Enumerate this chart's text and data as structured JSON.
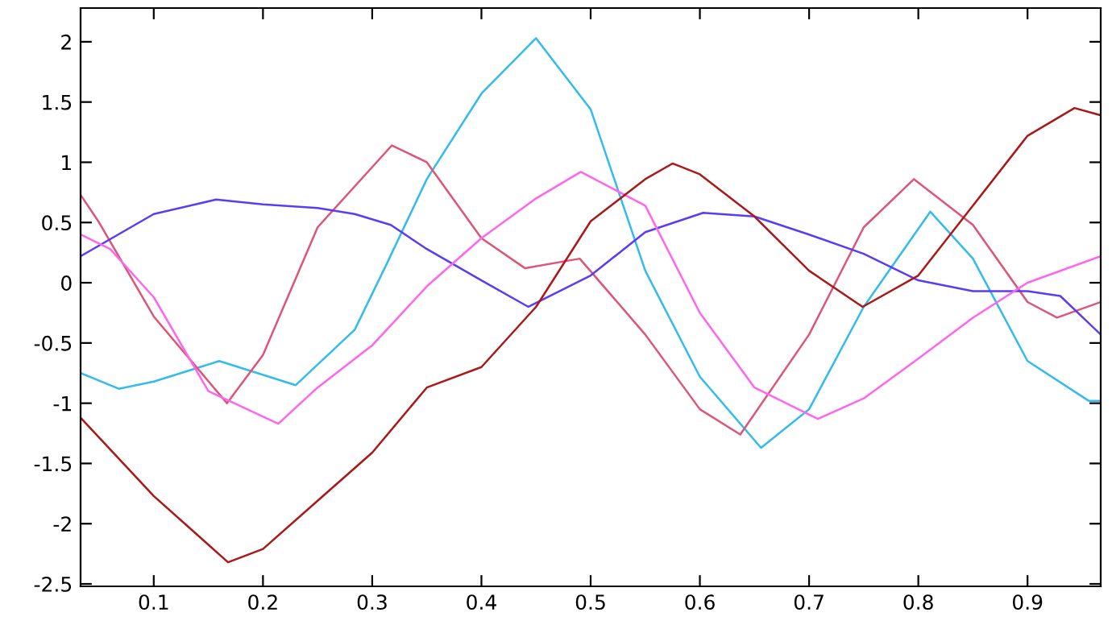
{
  "chart_data": {
    "type": "line",
    "xlim": [
      0.033,
      0.967
    ],
    "ylim": [
      -2.52,
      2.28
    ],
    "xticks": [
      0.1,
      0.2,
      0.3,
      0.4,
      0.5,
      0.6,
      0.7,
      0.8,
      0.9
    ],
    "yticks": [
      -2.5,
      -2,
      -1.5,
      -1,
      -0.5,
      0,
      0.5,
      1,
      1.5,
      2
    ],
    "grid": false,
    "legend": false,
    "marker": "none",
    "line_style": "solid",
    "series": [
      {
        "color": "#33bbee",
        "x": [
          0.033,
          0.068,
          0.1,
          0.16,
          0.23,
          0.284,
          0.314,
          0.35,
          0.4,
          0.45,
          0.5,
          0.55,
          0.6,
          0.656,
          0.7,
          0.75,
          0.811,
          0.85,
          0.9,
          0.956,
          0.967
        ],
        "values": [
          -0.75,
          -0.88,
          -0.82,
          -0.65,
          -0.85,
          -0.39,
          0.17,
          0.86,
          1.57,
          2.03,
          1.44,
          0.1,
          -0.78,
          -1.37,
          -1.05,
          -0.2,
          0.59,
          0.2,
          -0.65,
          -0.98,
          -0.98
        ]
      },
      {
        "color": "#dd5577",
        "x": [
          0.033,
          0.05,
          0.1,
          0.167,
          0.2,
          0.25,
          0.318,
          0.35,
          0.4,
          0.44,
          0.49,
          0.55,
          0.6,
          0.637,
          0.7,
          0.75,
          0.796,
          0.85,
          0.9,
          0.927,
          0.967
        ],
        "values": [
          0.73,
          0.5,
          -0.28,
          -1.0,
          -0.6,
          0.46,
          1.14,
          1.0,
          0.37,
          0.12,
          0.2,
          -0.43,
          -1.05,
          -1.26,
          -0.43,
          0.46,
          0.86,
          0.48,
          -0.16,
          -0.29,
          -0.16
        ]
      },
      {
        "color": "#5b3cf5",
        "x": [
          0.033,
          0.1,
          0.157,
          0.2,
          0.25,
          0.284,
          0.317,
          0.35,
          0.4,
          0.443,
          0.5,
          0.55,
          0.603,
          0.65,
          0.7,
          0.75,
          0.8,
          0.85,
          0.9,
          0.93,
          0.967
        ],
        "values": [
          0.22,
          0.57,
          0.69,
          0.65,
          0.62,
          0.57,
          0.48,
          0.28,
          0.02,
          -0.2,
          0.06,
          0.42,
          0.58,
          0.55,
          0.4,
          0.24,
          0.02,
          -0.07,
          -0.07,
          -0.11,
          -0.43
        ]
      },
      {
        "color": "#ff66ee",
        "x": [
          0.033,
          0.06,
          0.1,
          0.15,
          0.214,
          0.25,
          0.3,
          0.35,
          0.4,
          0.45,
          0.491,
          0.55,
          0.6,
          0.65,
          0.708,
          0.75,
          0.8,
          0.85,
          0.9,
          0.967
        ],
        "values": [
          0.4,
          0.28,
          -0.12,
          -0.9,
          -1.17,
          -0.87,
          -0.52,
          -0.03,
          0.37,
          0.7,
          0.92,
          0.64,
          -0.25,
          -0.87,
          -1.13,
          -0.96,
          -0.63,
          -0.29,
          0.0,
          0.22
        ]
      },
      {
        "color": "#aa1818",
        "x": [
          0.033,
          0.1,
          0.168,
          0.2,
          0.25,
          0.3,
          0.35,
          0.4,
          0.45,
          0.5,
          0.55,
          0.575,
          0.6,
          0.65,
          0.7,
          0.749,
          0.8,
          0.85,
          0.9,
          0.943,
          0.967
        ],
        "values": [
          -1.12,
          -1.77,
          -2.32,
          -2.21,
          -1.81,
          -1.41,
          -0.87,
          -0.7,
          -0.2,
          0.51,
          0.86,
          0.99,
          0.9,
          0.55,
          0.1,
          -0.2,
          0.06,
          0.64,
          1.22,
          1.45,
          1.39
        ]
      }
    ]
  }
}
